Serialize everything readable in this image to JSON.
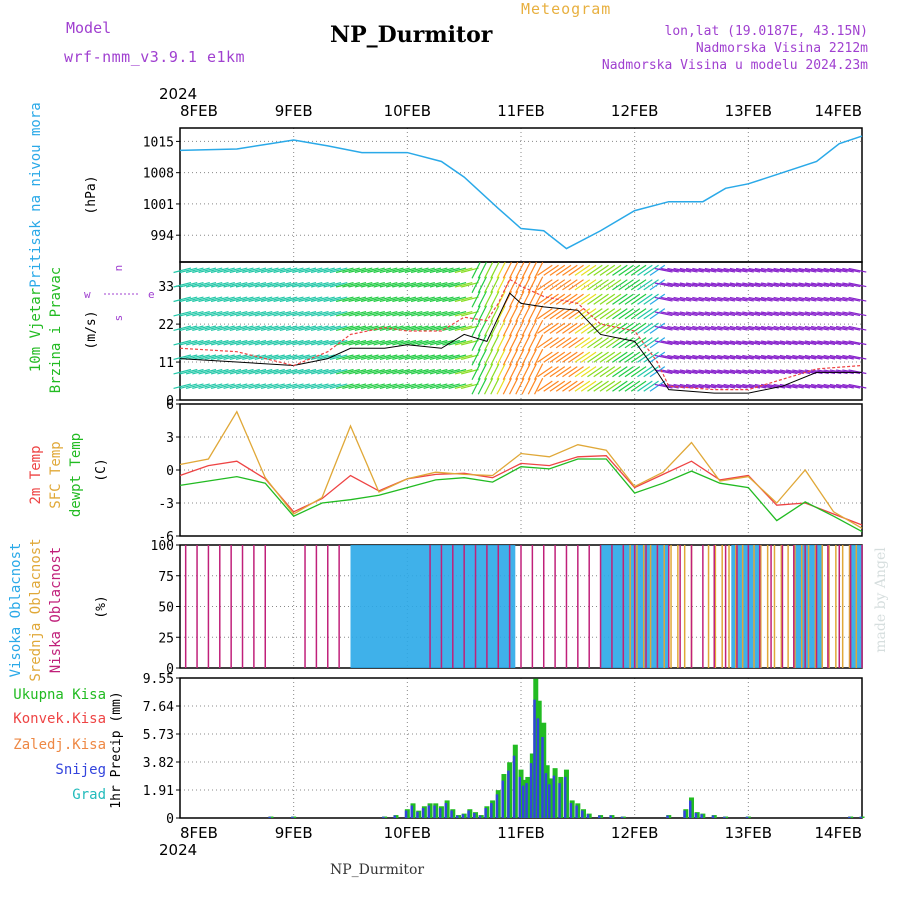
{
  "header": {
    "model_label": "Model",
    "model_name": "wrf-nmm_v3.9.1  e1km",
    "title": "NP_Durmitor",
    "subtitle": "Meteogram",
    "lonlat": "lon,lat (19.0187E, 43.15N)",
    "elevation": "Nadmorska Visina 2212m",
    "model_elevation": "Nadmorska Visina u modelu 2024.23m",
    "footer_station": "NP_Durmitor",
    "watermark": "made by Angel"
  },
  "colors": {
    "pressure": "#2aa9e8",
    "wind_label": "#22bb22",
    "temp_2m": "#ee4444",
    "temp_sfc": "#e0a838",
    "dewpoint": "#22bb22",
    "cloud_high": "#2aa9e8",
    "cloud_mid": "#e0a838",
    "cloud_low": "#c0207a",
    "precip_total": "#22bb22",
    "precip_conv": "#ee4444",
    "precip_frz": "#ee8844",
    "precip_snow": "#3344dd",
    "precip_grad": "#22bbbb",
    "label_purple": "#a040d0"
  },
  "chart_data": [
    {
      "type": "line",
      "panel": "pressure",
      "title": "Pritisak na nivou mora",
      "ylabel": "(hPa)",
      "ylim": [
        988,
        1018
      ],
      "yticks": [
        1015,
        1008,
        1001,
        994
      ],
      "x_labels": [
        "8FEB",
        "9FEB",
        "10FEB",
        "11FEB",
        "12FEB",
        "13FEB",
        "14FEB"
      ],
      "x_year": "2024",
      "x_days": [
        0,
        0.5,
        0.8,
        1.0,
        1.3,
        1.6,
        2.0,
        2.3,
        2.5,
        2.8,
        3.0,
        3.2,
        3.4,
        3.7,
        4.0,
        4.3,
        4.6,
        4.8,
        5.0,
        5.3,
        5.6,
        5.8,
        6.0
      ],
      "values": [
        1013,
        1013.3,
        1014.5,
        1015.3,
        1014,
        1012.5,
        1012.5,
        1010.5,
        1007,
        1000,
        995.5,
        995,
        991,
        995,
        999.5,
        1001.5,
        1001.5,
        1004.5,
        1005.5,
        1008,
        1010.5,
        1014.5,
        1016.2
      ],
      "grid": true
    },
    {
      "type": "line",
      "panel": "wind",
      "title": "10m Vjetar Brzina i Pravac",
      "ylabel": "(m/s)",
      "direction_legend": {
        "w": "w",
        "e": "e",
        "n": "n",
        "s": "s"
      },
      "ylim": [
        0,
        40
      ],
      "yticks": [
        0,
        11,
        22,
        33
      ],
      "x_days": [
        0,
        0.5,
        1.0,
        1.3,
        1.5,
        1.8,
        2.0,
        2.3,
        2.5,
        2.7,
        2.8,
        2.9,
        3.0,
        3.2,
        3.5,
        3.7,
        4.0,
        4.2,
        4.3,
        4.7,
        5.0,
        5.3,
        5.6,
        6.0
      ],
      "series": [
        {
          "name": "mean",
          "values": [
            12,
            11,
            10,
            12,
            15,
            15,
            16,
            15,
            19,
            17,
            24,
            31,
            28,
            27,
            26,
            19,
            17,
            8,
            3,
            2,
            2,
            4,
            8,
            8
          ]
        },
        {
          "name": "gust",
          "values": [
            15,
            14,
            10,
            14,
            19,
            21,
            20,
            20,
            24,
            23,
            28,
            35,
            33,
            30,
            28,
            22,
            20,
            11,
            4,
            3,
            3,
            6,
            9,
            10
          ]
        }
      ],
      "grid": true
    },
    {
      "type": "line",
      "panel": "temperature",
      "ylabel": "(C)",
      "ylim": [
        -6,
        6
      ],
      "yticks": [
        6,
        3,
        0,
        -3,
        -6
      ],
      "x_days": [
        0,
        0.25,
        0.5,
        0.75,
        1.0,
        1.25,
        1.5,
        1.75,
        2.0,
        2.25,
        2.5,
        2.75,
        3.0,
        3.25,
        3.5,
        3.75,
        4.0,
        4.25,
        4.5,
        4.75,
        5.0,
        5.25,
        5.5,
        5.75,
        6.0
      ],
      "series": [
        {
          "name": "2m Temp",
          "values": [
            -0.5,
            0.4,
            0.8,
            -0.8,
            -3.8,
            -2.6,
            -0.5,
            -1.9,
            -0.8,
            -0.4,
            -0.3,
            -0.7,
            0.6,
            0.4,
            1.2,
            1.3,
            -1.6,
            -0.4,
            0.8,
            -0.9,
            -0.5,
            -3.2,
            -3.0,
            -4.0,
            -5.0
          ]
        },
        {
          "name": "SFC Temp",
          "values": [
            0.5,
            1.0,
            5.3,
            -0.7,
            -4.0,
            -2.5,
            4.0,
            -2.0,
            -0.8,
            -0.2,
            -0.4,
            -0.5,
            1.5,
            1.2,
            2.3,
            1.8,
            -1.5,
            -0.2,
            2.5,
            -1.0,
            -0.6,
            -3.0,
            0.0,
            -3.8,
            -5.3
          ]
        },
        {
          "name": "dewpt Temp",
          "values": [
            -1.4,
            -1.0,
            -0.6,
            -1.2,
            -4.2,
            -3.0,
            -2.7,
            -2.3,
            -1.6,
            -0.9,
            -0.7,
            -1.1,
            0.3,
            0.1,
            1.0,
            1.0,
            -2.1,
            -1.2,
            -0.1,
            -1.2,
            -1.6,
            -4.6,
            -2.9,
            -4.2,
            -5.6
          ]
        }
      ],
      "legend_labels": [
        "2m Temp",
        "SFC Temp",
        "dewpt Temp"
      ],
      "grid": true
    },
    {
      "type": "bar",
      "panel": "cloud",
      "ylabel": "(%)",
      "ylim": [
        0,
        100
      ],
      "yticks": [
        0,
        25,
        50,
        75,
        100
      ],
      "legend_labels": [
        "Visoka Oblacnost",
        "Srednja Oblacnost",
        "Niska Oblacnost"
      ],
      "cloud_blocks": [
        {
          "name": "Visoka Oblacnost",
          "spans_days": [
            [
              1.5,
              2.95
            ],
            [
              3.7,
              4.3
            ],
            [
              4.85,
              5.1
            ],
            [
              5.4,
              5.65
            ],
            [
              5.9,
              6.0
            ]
          ],
          "value": 100
        },
        {
          "name": "Srednja Oblacnost",
          "spans_days": [
            [
              3.9,
              4.5
            ],
            [
              4.65,
              5.0
            ],
            [
              5.05,
              6.0
            ]
          ],
          "value": 100
        },
        {
          "name": "Niska Oblacnost",
          "spans_days": [
            [
              0.05,
              0.75
            ],
            [
              1.1,
              1.5
            ],
            [
              2.2,
              6.0
            ]
          ],
          "value": 100
        }
      ],
      "grid": true
    },
    {
      "type": "bar",
      "panel": "precipitation",
      "ylabel": "1hr Precip (mm)",
      "ylim": [
        0,
        9.55
      ],
      "yticks": [
        0,
        1.91,
        3.82,
        5.73,
        7.64,
        9.55
      ],
      "legend_labels": [
        "Ukupna Kisa",
        "Konvek.Kisa",
        "Zaledj.Kisa",
        "Snijeg",
        "Grad"
      ],
      "x_days": [
        0.8,
        1.0,
        1.8,
        1.9,
        2.0,
        2.05,
        2.1,
        2.15,
        2.2,
        2.25,
        2.3,
        2.35,
        2.4,
        2.45,
        2.5,
        2.55,
        2.6,
        2.65,
        2.7,
        2.75,
        2.8,
        2.85,
        2.9,
        2.95,
        3.0,
        3.03,
        3.06,
        3.1,
        3.13,
        3.16,
        3.2,
        3.23,
        3.26,
        3.3,
        3.35,
        3.4,
        3.45,
        3.5,
        3.55,
        3.6,
        3.7,
        3.8,
        3.9,
        4.3,
        4.45,
        4.5,
        4.55,
        4.6,
        4.7,
        4.8,
        5.0,
        5.9,
        6.0
      ],
      "values": [
        0.1,
        0.1,
        0.1,
        0.2,
        0.6,
        1.0,
        0.5,
        0.8,
        1.0,
        1.0,
        0.8,
        1.2,
        0.6,
        0.2,
        0.3,
        0.6,
        0.4,
        0.2,
        0.8,
        1.2,
        1.9,
        3.0,
        3.8,
        5.0,
        3.3,
        2.6,
        2.8,
        4.4,
        9.5,
        8.0,
        6.5,
        3.6,
        2.7,
        3.4,
        2.8,
        3.3,
        1.2,
        1.0,
        0.6,
        0.3,
        0.2,
        0.2,
        0.1,
        0.2,
        0.6,
        1.4,
        0.4,
        0.3,
        0.2,
        0.1,
        0.1,
        0.1,
        0.1
      ],
      "grid": true
    }
  ],
  "x_axis_labels": [
    "8FEB",
    "9FEB",
    "10FEB",
    "11FEB",
    "12FEB",
    "13FEB",
    "14FEB"
  ],
  "x_axis_year": "2024"
}
